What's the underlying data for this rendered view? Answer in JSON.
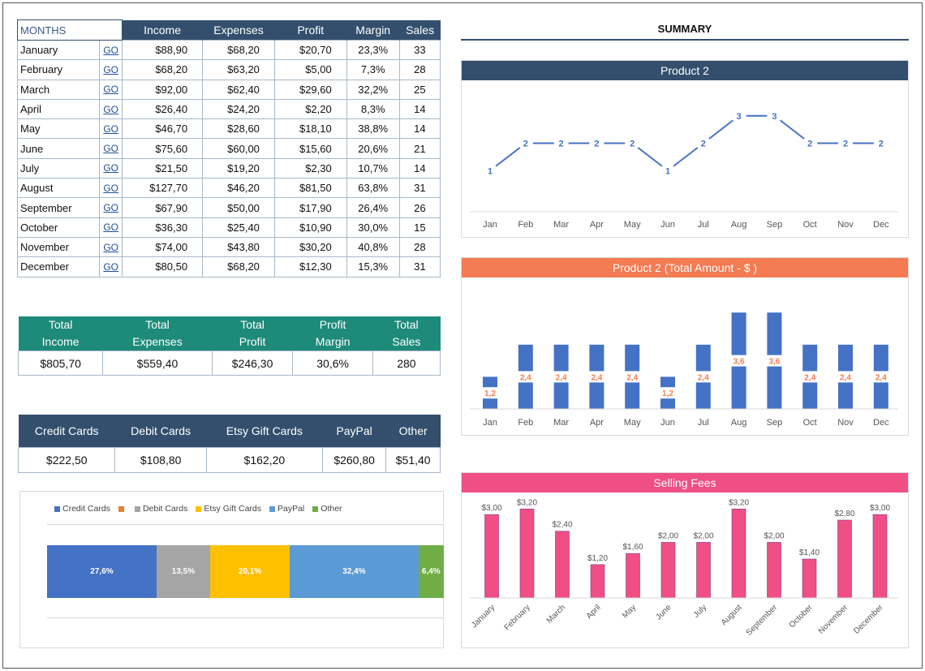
{
  "months_table": {
    "headers": [
      "MONTHS",
      "Income",
      "Expenses",
      "Profit",
      "Margin",
      "Sales"
    ],
    "go_label": "GO",
    "rows": [
      {
        "month": "January",
        "income": "$88,90",
        "expenses": "$68,20",
        "profit": "$20,70",
        "margin": "23,3%",
        "sales": "33"
      },
      {
        "month": "February",
        "income": "$68,20",
        "expenses": "$63,20",
        "profit": "$5,00",
        "margin": "7,3%",
        "sales": "28"
      },
      {
        "month": "March",
        "income": "$92,00",
        "expenses": "$62,40",
        "profit": "$29,60",
        "margin": "32,2%",
        "sales": "25"
      },
      {
        "month": "April",
        "income": "$26,40",
        "expenses": "$24,20",
        "profit": "$2,20",
        "margin": "8,3%",
        "sales": "14"
      },
      {
        "month": "May",
        "income": "$46,70",
        "expenses": "$28,60",
        "profit": "$18,10",
        "margin": "38,8%",
        "sales": "14"
      },
      {
        "month": "June",
        "income": "$75,60",
        "expenses": "$60,00",
        "profit": "$15,60",
        "margin": "20,6%",
        "sales": "21"
      },
      {
        "month": "July",
        "income": "$21,50",
        "expenses": "$19,20",
        "profit": "$2,30",
        "margin": "10,7%",
        "sales": "14"
      },
      {
        "month": "August",
        "income": "$127,70",
        "expenses": "$46,20",
        "profit": "$81,50",
        "margin": "63,8%",
        "sales": "31"
      },
      {
        "month": "September",
        "income": "$67,90",
        "expenses": "$50,00",
        "profit": "$17,90",
        "margin": "26,4%",
        "sales": "26"
      },
      {
        "month": "October",
        "income": "$36,30",
        "expenses": "$25,40",
        "profit": "$10,90",
        "margin": "30,0%",
        "sales": "15"
      },
      {
        "month": "November",
        "income": "$74,00",
        "expenses": "$43,80",
        "profit": "$30,20",
        "margin": "40,8%",
        "sales": "28"
      },
      {
        "month": "December",
        "income": "$80,50",
        "expenses": "$68,20",
        "profit": "$12,30",
        "margin": "15,3%",
        "sales": "31"
      }
    ]
  },
  "totals": {
    "headers": [
      [
        "Total",
        "Income"
      ],
      [
        "Total",
        "Expenses"
      ],
      [
        "Total",
        "Profit"
      ],
      [
        "Profit",
        "Margin"
      ],
      [
        "Total",
        "Sales"
      ]
    ],
    "values": [
      "$805,70",
      "$559,40",
      "$246,30",
      "30,6%",
      "280"
    ]
  },
  "payments": {
    "headers": [
      "Credit Cards",
      "Debit Cards",
      "Etsy Gift Cards",
      "PayPal",
      "Other"
    ],
    "values": [
      "$222,50",
      "$108,80",
      "$162,20",
      "$260,80",
      "$51,40"
    ]
  },
  "colors": {
    "navy": "#344f6d",
    "teal": "#1d8a7a",
    "orange": "#f47b52",
    "pink": "#f04f86",
    "blue": "#4472c4"
  },
  "summary_title": "SUMMARY",
  "chart_data": [
    {
      "type": "bar",
      "stacked": true,
      "orientation": "horizontal",
      "legend_position": "top",
      "categories": [
        "Credit Cards",
        "",
        "Debit Cards",
        "Etsy Gift Cards",
        "PayPal",
        "Other"
      ],
      "colors": [
        "#4472c4",
        "#ed7d31",
        "#a5a5a5",
        "#ffc000",
        "#5b9bd5",
        "#70ad47"
      ],
      "values": [
        27.6,
        0,
        13.5,
        20.1,
        32.4,
        6.4
      ],
      "labels": [
        "27,6%",
        "",
        "13,5%",
        "20,1%",
        "32,4%",
        "6,4%"
      ]
    },
    {
      "type": "line",
      "title": "Product 2",
      "categories": [
        "Jan",
        "Feb",
        "Mar",
        "Apr",
        "May",
        "Jun",
        "Jul",
        "Aug",
        "Sep",
        "Oct",
        "Nov",
        "Dec"
      ],
      "values": [
        1,
        2,
        2,
        2,
        2,
        1,
        2,
        3,
        3,
        2,
        2,
        2
      ],
      "labels": [
        "1",
        "2",
        "2",
        "2",
        "2",
        "1",
        "2",
        "3",
        "3",
        "2",
        "2",
        "2"
      ],
      "ylim": [
        0,
        4
      ],
      "color": "#4472c4"
    },
    {
      "type": "bar",
      "title": "Product 2 (Total Amount - $ )",
      "categories": [
        "Jan",
        "Feb",
        "Mar",
        "Apr",
        "May",
        "Jun",
        "Jul",
        "Aug",
        "Sep",
        "Oct",
        "Nov",
        "Dec"
      ],
      "values": [
        1.2,
        2.4,
        2.4,
        2.4,
        2.4,
        1.2,
        2.4,
        3.6,
        3.6,
        2.4,
        2.4,
        2.4
      ],
      "labels": [
        "1,2",
        "2,4",
        "2,4",
        "2,4",
        "2,4",
        "1,2",
        "2,4",
        "3,6",
        "3,6",
        "2,4",
        "2,4",
        "2,4"
      ],
      "ylim": [
        0,
        4
      ],
      "color": "#4472c4",
      "label_color": "#f47b52"
    },
    {
      "type": "bar",
      "title": "Selling Fees",
      "categories": [
        "January",
        "February",
        "March",
        "April",
        "May",
        "June",
        "July",
        "August",
        "September",
        "October",
        "November",
        "December"
      ],
      "values": [
        3.0,
        3.2,
        2.4,
        1.2,
        1.6,
        2.0,
        2.0,
        3.2,
        2.0,
        1.4,
        2.8,
        3.0
      ],
      "labels": [
        "$3,00",
        "$3,20",
        "$2,40",
        "$1,20",
        "$1,60",
        "$2,00",
        "$2,00",
        "$3,20",
        "$2,00",
        "$1,40",
        "$2,80",
        "$3,00"
      ],
      "ylim": [
        0,
        3.5
      ],
      "color": "#f04f86"
    }
  ]
}
